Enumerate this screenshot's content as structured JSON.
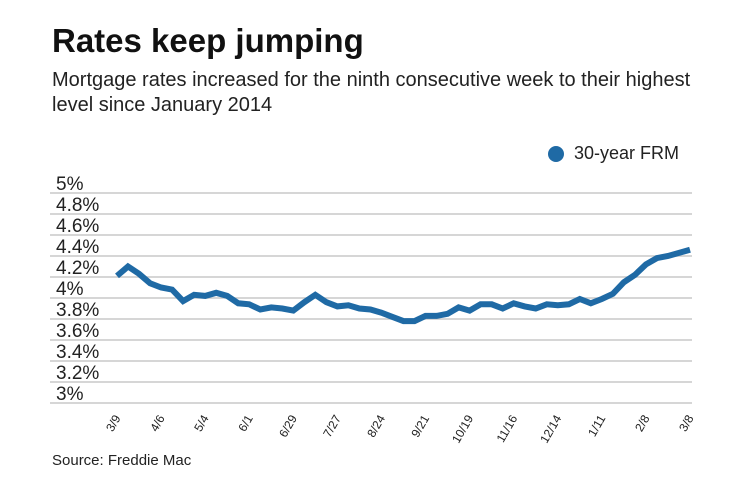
{
  "title": "Rates keep jumping",
  "subtitle": "Mortgage rates increased for the ninth consecutive week to their highest level since January 2014",
  "source": "Source: Freddie Mac",
  "chart_data": {
    "type": "line",
    "title": "Rates keep jumping",
    "ylim": [
      3,
      5
    ],
    "yticks": [
      "3%",
      "3.2%",
      "3.4%",
      "3.6%",
      "3.8%",
      "4%",
      "4.2%",
      "4.4%",
      "4.6%",
      "4.8%",
      "5%"
    ],
    "xtick_labels": [
      "3/9",
      "4/6",
      "5/4",
      "6/1",
      "6/29",
      "7/27",
      "8/24",
      "9/21",
      "10/19",
      "11/16",
      "12/14",
      "1/11",
      "2/8",
      "3/8"
    ],
    "grid": true,
    "legend_placement": "top-right",
    "series": [
      {
        "name": "30-year FRM",
        "color": "#1f6aa5",
        "values": [
          4.21,
          4.3,
          4.23,
          4.14,
          4.1,
          4.08,
          3.97,
          4.03,
          4.02,
          4.05,
          4.02,
          3.95,
          3.94,
          3.89,
          3.91,
          3.9,
          3.88,
          3.96,
          4.03,
          3.96,
          3.92,
          3.93,
          3.9,
          3.89,
          3.86,
          3.82,
          3.78,
          3.78,
          3.83,
          3.83,
          3.85,
          3.91,
          3.88,
          3.94,
          3.94,
          3.9,
          3.95,
          3.92,
          3.9,
          3.94,
          3.93,
          3.94,
          3.99,
          3.95,
          3.99,
          4.04,
          4.15,
          4.22,
          4.32,
          4.38,
          4.4,
          4.43,
          4.46
        ]
      }
    ]
  }
}
